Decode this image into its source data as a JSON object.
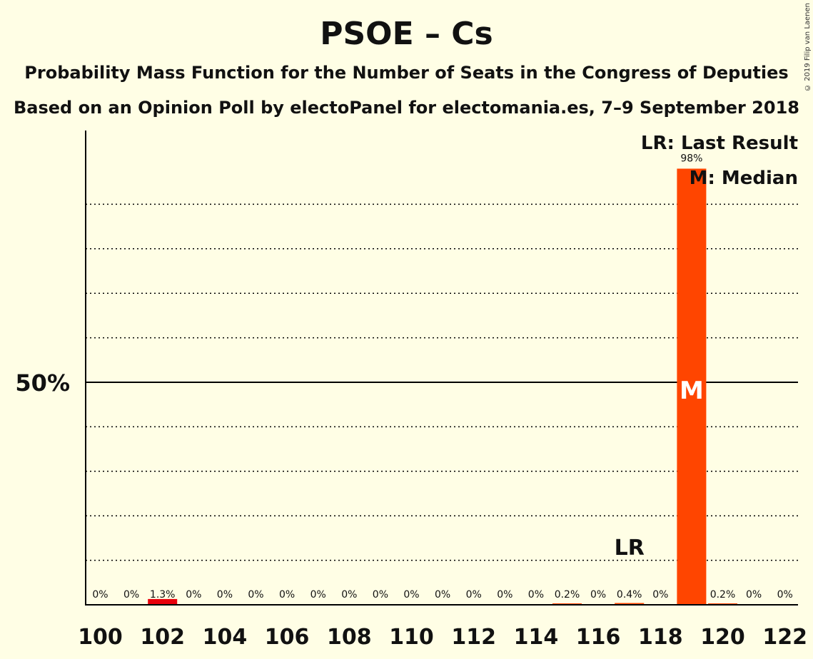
{
  "title": "PSOE – Cs",
  "subtitle1": "Probability Mass Function for the Number of Seats in the Congress of Deputies",
  "subtitle2": "Based on an Opinion Poll by electoPanel for electomania.es, 7–9 September 2018",
  "copyright": "© 2019 Filip van Laenen",
  "legend": {
    "last_result": "LR: Last Result",
    "median": "M: Median"
  },
  "markers": {
    "last_result_label": "LR",
    "median_label": "M"
  },
  "colors": {
    "background": "#FFFEE5",
    "bar": "#FF4500",
    "low_bar": "#E8000B",
    "axis": "#000000"
  },
  "chart_data": {
    "type": "bar",
    "x": [
      100,
      101,
      102,
      103,
      104,
      105,
      106,
      107,
      108,
      109,
      110,
      111,
      112,
      113,
      114,
      115,
      116,
      117,
      118,
      119,
      120,
      121,
      122
    ],
    "values": [
      0,
      0,
      1.3,
      0,
      0,
      0,
      0,
      0,
      0,
      0,
      0,
      0,
      0,
      0,
      0,
      0.2,
      0,
      0.4,
      0,
      98,
      0.2,
      0,
      0
    ],
    "value_labels": [
      "0%",
      "0%",
      "1.3%",
      "0%",
      "0%",
      "0%",
      "0%",
      "0%",
      "0%",
      "0%",
      "0%",
      "0%",
      "0%",
      "0%",
      "0%",
      "0.2%",
      "0%",
      "0.4%",
      "0%",
      "98%",
      "0.2%",
      "0%",
      "0%"
    ],
    "x_tick_labels": [
      "100",
      "102",
      "104",
      "106",
      "108",
      "110",
      "112",
      "114",
      "116",
      "118",
      "120",
      "122"
    ],
    "y_tick_label": "50%",
    "y_tick_value": 50,
    "ylim": [
      0,
      100
    ],
    "gridlines": [
      10,
      20,
      30,
      40,
      60,
      70,
      80,
      90
    ],
    "last_result": 117,
    "median": 119
  }
}
